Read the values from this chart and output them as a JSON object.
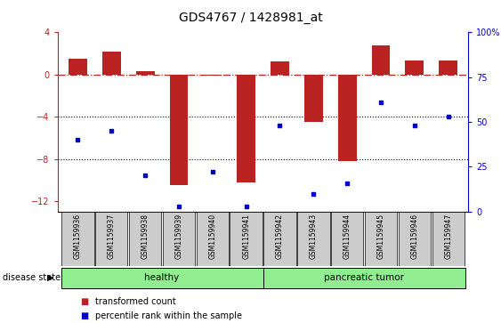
{
  "title": "GDS4767 / 1428981_at",
  "samples": [
    "GSM1159936",
    "GSM1159937",
    "GSM1159938",
    "GSM1159939",
    "GSM1159940",
    "GSM1159941",
    "GSM1159942",
    "GSM1159943",
    "GSM1159944",
    "GSM1159945",
    "GSM1159946",
    "GSM1159947"
  ],
  "bar_values": [
    1.5,
    2.2,
    0.3,
    -10.5,
    -0.1,
    -10.2,
    1.2,
    -4.5,
    -8.2,
    2.8,
    1.3,
    1.3
  ],
  "percentile_right": [
    40,
    45,
    20,
    3,
    22,
    3,
    48,
    10,
    16,
    61,
    48,
    53
  ],
  "bar_color": "#bb2222",
  "dot_color": "#0000cc",
  "ylim_left": [
    -13,
    4
  ],
  "ylim_right": [
    0,
    100
  ],
  "right_ticks": [
    0,
    25,
    50,
    75,
    100
  ],
  "right_tick_labels": [
    "0",
    "25",
    "50",
    "75",
    "100%"
  ],
  "left_ticks": [
    -12,
    -8,
    -4,
    0,
    4
  ],
  "dotted_line_y": [
    -4,
    -8
  ],
  "group_labels": [
    "healthy",
    "pancreatic tumor"
  ],
  "group_ranges": [
    [
      0,
      6
    ],
    [
      6,
      12
    ]
  ],
  "disease_state_label": "disease state",
  "legend_items": [
    {
      "color": "#bb2222",
      "label": "transformed count"
    },
    {
      "color": "#0000cc",
      "label": "percentile rank within the sample"
    }
  ],
  "bar_width": 0.55,
  "background_color": "#ffffff",
  "label_box_color": "#cccccc"
}
